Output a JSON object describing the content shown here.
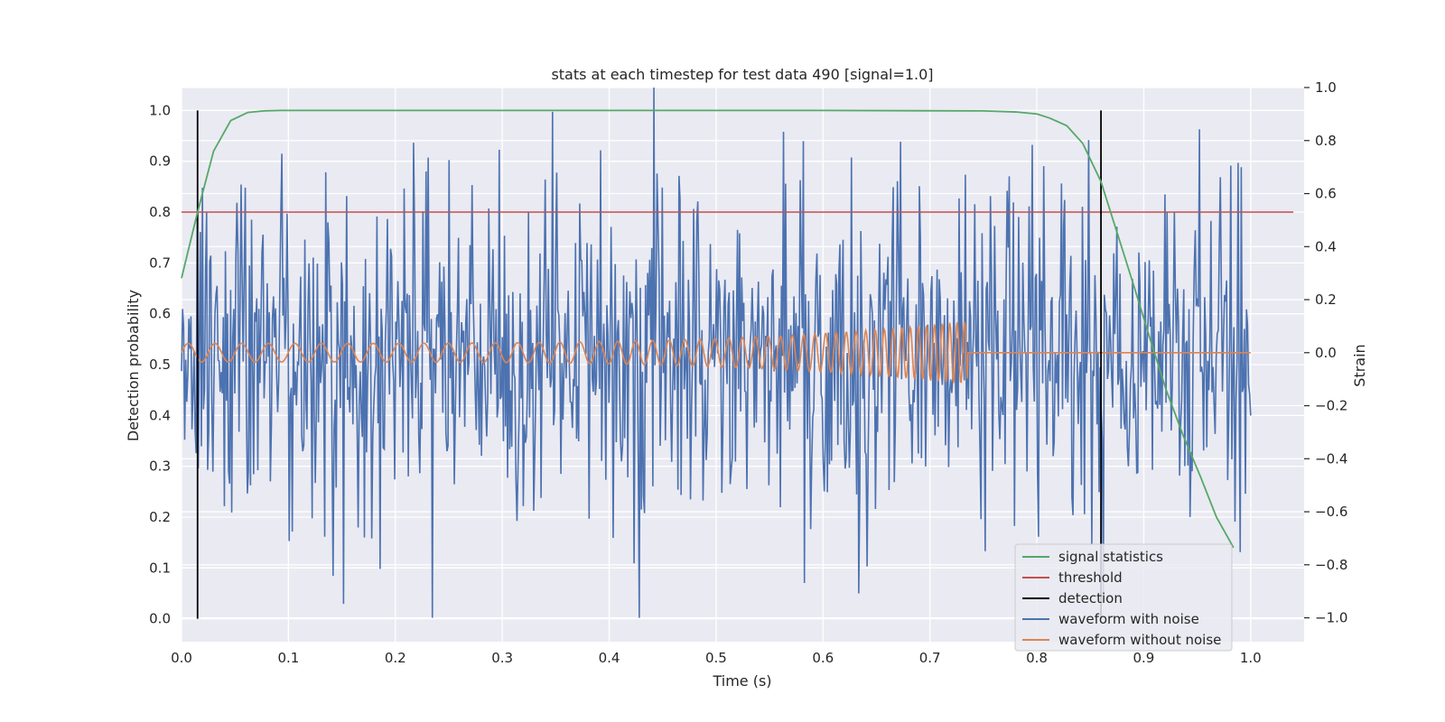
{
  "chart_data": {
    "type": "line",
    "title": "stats at each timestep for test data 490 [signal=1.0]",
    "xlabel": "Time (s)",
    "ylabel_left": "Detection probability",
    "ylabel_right": "Strain",
    "xlim": [
      0.0,
      1.05
    ],
    "ylim_left": [
      -0.045,
      1.045
    ],
    "ylim_right": [
      -1.09,
      1.0
    ],
    "x_ticks": [
      0.0,
      0.1,
      0.2,
      0.3,
      0.4,
      0.5,
      0.6,
      0.7,
      0.8,
      0.9,
      1.0
    ],
    "x_tick_labels": [
      "0.0",
      "0.1",
      "0.2",
      "0.3",
      "0.4",
      "0.5",
      "0.6",
      "0.7",
      "0.8",
      "0.9",
      "1.0"
    ],
    "y_left_ticks": [
      0.0,
      0.1,
      0.2,
      0.3,
      0.4,
      0.5,
      0.6,
      0.7,
      0.8,
      0.9,
      1.0
    ],
    "y_left_tick_labels": [
      "0.0",
      "0.1",
      "0.2",
      "0.3",
      "0.4",
      "0.5",
      "0.6",
      "0.7",
      "0.8",
      "0.9",
      "1.0"
    ],
    "y_right_ticks": [
      -1.0,
      -0.8,
      -0.6,
      -0.4,
      -0.2,
      0.0,
      0.2,
      0.4,
      0.6,
      0.8,
      1.0
    ],
    "y_right_tick_labels": [
      "−1.0",
      "−0.8",
      "−0.6",
      "−0.4",
      "−0.2",
      "0.0",
      "0.2",
      "0.4",
      "0.6",
      "0.8",
      "1.0"
    ],
    "grid": true,
    "legend_position": "lower-right",
    "series": [
      {
        "name": "signal statistics",
        "axis": "left",
        "color": "#55a868",
        "x": [
          0.0,
          0.015,
          0.03,
          0.046,
          0.062,
          0.077,
          0.093,
          0.2,
          0.4,
          0.6,
          0.75,
          0.78,
          0.8,
          0.812,
          0.828,
          0.843,
          0.86,
          0.875,
          0.89,
          0.906,
          0.921,
          0.937,
          0.953,
          0.968,
          0.984
        ],
        "y": [
          0.67,
          0.8,
          0.92,
          0.98,
          0.996,
          0.999,
          1.0,
          1.0,
          1.0,
          1.0,
          0.999,
          0.997,
          0.993,
          0.985,
          0.97,
          0.935,
          0.86,
          0.76,
          0.66,
          0.55,
          0.45,
          0.36,
          0.28,
          0.2,
          0.14
        ],
        "note_style": "solid"
      },
      {
        "name": "threshold",
        "axis": "left",
        "color": "#c44e52",
        "x": [
          0.0,
          1.04
        ],
        "y": [
          0.8,
          0.8
        ]
      },
      {
        "name": "detection",
        "axis": "left",
        "color": "#000000",
        "segments": [
          {
            "x": 0.015,
            "y0": 0.0,
            "y1": 1.0
          },
          {
            "x": 0.86,
            "y0": 0.0,
            "y1": 1.0
          }
        ]
      },
      {
        "name": "waveform with noise",
        "axis": "right",
        "color": "#4c72b0",
        "x_range": [
          0.0,
          1.0
        ],
        "n_points": 1024,
        "y_range": [
          -1.0,
          1.0
        ],
        "approx_std": 0.32,
        "seed": 490
      },
      {
        "name": "waveform without noise",
        "axis": "right",
        "color": "#dd8452",
        "x_range": [
          0.0,
          1.0
        ],
        "chirp_end": 0.735,
        "amp_start": 0.035,
        "amp_end": 0.12,
        "f_start": 40,
        "f_end": 150
      }
    ]
  },
  "legend": {
    "items": [
      {
        "label": "signal statistics",
        "color": "#55a868"
      },
      {
        "label": "threshold",
        "color": "#c44e52"
      },
      {
        "label": "detection",
        "color": "#000000"
      },
      {
        "label": "waveform with noise",
        "color": "#4c72b0"
      },
      {
        "label": "waveform without noise",
        "color": "#dd8452"
      }
    ]
  },
  "colors": {
    "plot_background": "#eaeaf2",
    "grid": "#ffffff",
    "text": "#262626"
  }
}
